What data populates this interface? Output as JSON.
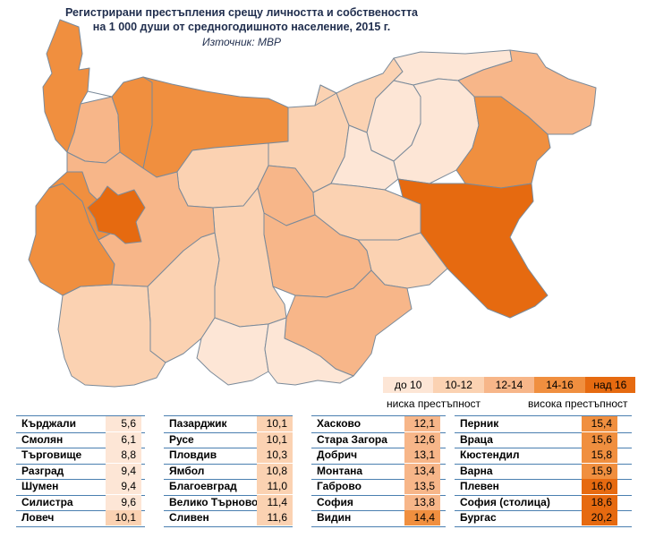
{
  "title_line1": "Регистрирани престъпления срещу личността и собствеността",
  "title_line2": "на 1 000 души от средногодишното население, 2015 г.",
  "source": "Източник: МВР",
  "colors": {
    "do10": "#fde6d6",
    "b10_12": "#fbd2b2",
    "b12_14": "#f7b689",
    "b14_16": "#f08f3f",
    "nad16": "#e66a10",
    "border": "#7a8a9a"
  },
  "legend": {
    "items": [
      "до 10",
      "10-12",
      "12-14",
      "14-16",
      "над 16"
    ],
    "low_label": "ниска престъпност",
    "high_label": "висока престъпност"
  },
  "table": [
    [
      {
        "name": "Кърджали",
        "value": "5,6"
      },
      {
        "name": "Смолян",
        "value": "6,1"
      },
      {
        "name": "Търговище",
        "value": "8,8"
      },
      {
        "name": "Разград",
        "value": "9,4"
      },
      {
        "name": "Шумен",
        "value": "9,4"
      },
      {
        "name": "Силистра",
        "value": "9,6"
      },
      {
        "name": "Ловеч",
        "value": "10,1"
      }
    ],
    [
      {
        "name": "Пазарджик",
        "value": "10,1"
      },
      {
        "name": "Русе",
        "value": "10,1"
      },
      {
        "name": "Пловдив",
        "value": "10,3"
      },
      {
        "name": "Ямбол",
        "value": "10,8"
      },
      {
        "name": "Благоевград",
        "value": "11,0"
      },
      {
        "name": "Велико Търново",
        "value": "11,4"
      },
      {
        "name": "Сливен",
        "value": "11,6"
      }
    ],
    [
      {
        "name": "Хасково",
        "value": "12,1"
      },
      {
        "name": "Стара Загора",
        "value": "12,6"
      },
      {
        "name": "Добрич",
        "value": "13,1"
      },
      {
        "name": "Монтана",
        "value": "13,4"
      },
      {
        "name": "Габрово",
        "value": "13,5"
      },
      {
        "name": "София",
        "value": "13,8"
      },
      {
        "name": "Видин",
        "value": "14,4"
      }
    ],
    [
      {
        "name": "Перник",
        "value": "15,4"
      },
      {
        "name": "Враца",
        "value": "15,6"
      },
      {
        "name": "Кюстендил",
        "value": "15,8"
      },
      {
        "name": "Варна",
        "value": "15,9"
      },
      {
        "name": "Плевен",
        "value": "16,0"
      },
      {
        "name": "София (столица)",
        "value": "18,6"
      },
      {
        "name": "Бургас",
        "value": "20,2"
      }
    ]
  ]
}
